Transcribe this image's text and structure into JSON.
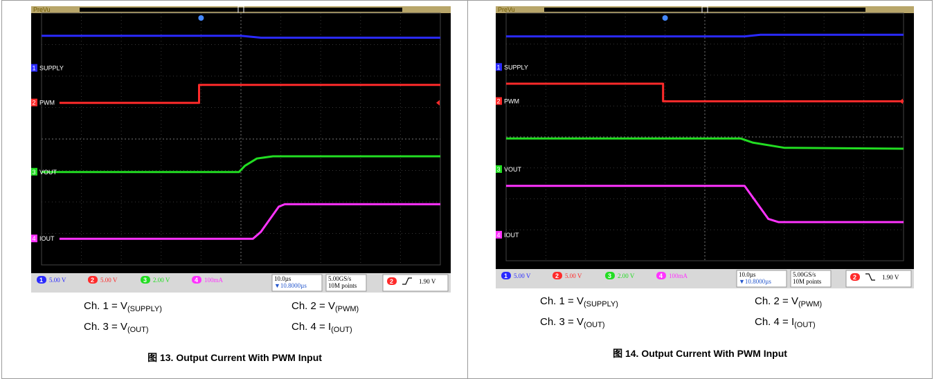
{
  "chart_data": [
    {
      "type": "line",
      "title": "",
      "xlabel": "",
      "ylabel": "",
      "timebase": "10.0µs",
      "trigger_position": "▼10.8000µs",
      "sample_rate": "5.00GS/s",
      "record_length": "10M points",
      "acquisition_state": "PreVu",
      "channel_markers": [
        "1",
        "2",
        "3",
        "4"
      ],
      "trigger_channel": "2",
      "trigger_slope": "rising",
      "trigger_level": "1.90 V",
      "x_divisions": 10,
      "y_divisions": 8,
      "x_range_divisions": [
        0,
        10
      ],
      "y_range_divisions": [
        0,
        8
      ],
      "grid": true,
      "channels": [
        {
          "num": "1",
          "scale": "5.00 V",
          "color": "#2a2aff"
        },
        {
          "num": "2",
          "scale": "5.00 V",
          "color": "#ff2a2a"
        },
        {
          "num": "3",
          "scale": "2.00 V",
          "color": "#22dd22"
        },
        {
          "num": "4",
          "scale": "100mA",
          "color": "#ff33ff"
        }
      ],
      "series": [
        {
          "name": "SUPPLY",
          "color": "#2a2aff",
          "x": [
            0,
            5.0,
            5.5,
            10
          ],
          "y": [
            7.28,
            7.28,
            7.22,
            7.22
          ]
        },
        {
          "name": "PWM",
          "color": "#ff2a2a",
          "x": [
            0.45,
            3.95,
            3.95,
            10
          ],
          "y": [
            5.15,
            5.15,
            5.72,
            5.72
          ]
        },
        {
          "name": "VOUT",
          "color": "#22dd22",
          "x": [
            0,
            4.95,
            5.1,
            5.4,
            5.8,
            10
          ],
          "y": [
            2.95,
            2.95,
            3.15,
            3.38,
            3.45,
            3.45
          ]
        },
        {
          "name": "IOUT",
          "color": "#ff33ff",
          "x": [
            0.45,
            5.3,
            5.5,
            5.95,
            6.1,
            10
          ],
          "y": [
            0.83,
            0.83,
            1.05,
            1.85,
            1.93,
            1.93
          ]
        }
      ],
      "legend_text": [
        {
          "ch": "Ch. 1 = V",
          "sub": "(SUPPLY)"
        },
        {
          "ch": "Ch. 2 = V",
          "sub": "(PWM)"
        },
        {
          "ch": "Ch. 3 = V",
          "sub": "(OUT)"
        },
        {
          "ch": "Ch. 4 = I",
          "sub": "(OUT)"
        }
      ],
      "caption": "图 13. Output Current With PWM Input"
    },
    {
      "type": "line",
      "title": "",
      "xlabel": "",
      "ylabel": "",
      "timebase": "10.0µs",
      "trigger_position": "▼10.8000µs",
      "sample_rate": "5.00GS/s",
      "record_length": "10M points",
      "acquisition_state": "PreVu",
      "channel_markers": [
        "1",
        "2",
        "3",
        "4"
      ],
      "trigger_channel": "2",
      "trigger_slope": "falling",
      "trigger_level": "1.90 V",
      "x_divisions": 10,
      "y_divisions": 8,
      "x_range_divisions": [
        0,
        10
      ],
      "y_range_divisions": [
        0,
        8
      ],
      "grid": true,
      "channels": [
        {
          "num": "1",
          "scale": "5.00 V",
          "color": "#2a2aff"
        },
        {
          "num": "2",
          "scale": "5.00 V",
          "color": "#ff2a2a"
        },
        {
          "num": "3",
          "scale": "2.00 V",
          "color": "#22dd22"
        },
        {
          "num": "4",
          "scale": "100mA",
          "color": "#ff33ff"
        }
      ],
      "series": [
        {
          "name": "SUPPLY",
          "color": "#2a2aff",
          "x": [
            0,
            6.0,
            6.4,
            10
          ],
          "y": [
            7.25,
            7.25,
            7.3,
            7.3
          ]
        },
        {
          "name": "PWM",
          "color": "#ff2a2a",
          "x": [
            0,
            3.95,
            3.95,
            10
          ],
          "y": [
            5.72,
            5.72,
            5.15,
            5.15
          ]
        },
        {
          "name": "VOUT",
          "color": "#22dd22",
          "x": [
            0,
            5.9,
            6.2,
            7.0,
            10
          ],
          "y": [
            3.95,
            3.95,
            3.82,
            3.65,
            3.62
          ]
        },
        {
          "name": "IOUT",
          "color": "#ff33ff",
          "x": [
            0,
            6.0,
            6.15,
            6.6,
            6.85,
            10
          ],
          "y": [
            2.42,
            2.42,
            2.15,
            1.35,
            1.25,
            1.25
          ]
        }
      ],
      "legend_text": [
        {
          "ch": "Ch. 1 = V",
          "sub": "(SUPPLY)"
        },
        {
          "ch": "Ch. 2 = V",
          "sub": "(PWM)"
        },
        {
          "ch": "Ch. 3 = V",
          "sub": "(OUT)"
        },
        {
          "ch": "Ch. 4 = I",
          "sub": "(OUT)"
        }
      ],
      "caption": "图 14. Output Current With PWM Input"
    }
  ]
}
